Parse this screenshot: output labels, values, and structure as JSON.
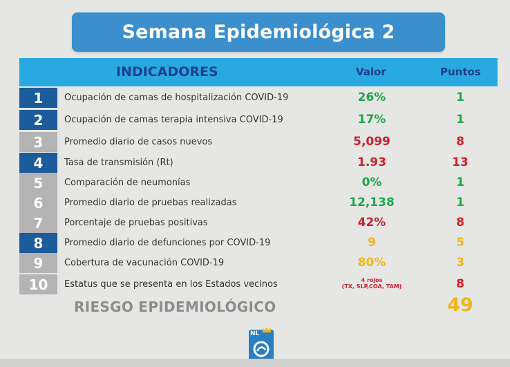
{
  "title": "Semana Epidemiológica 2",
  "header": {
    "indicadores": "INDICADORES",
    "valor": "Valor",
    "puntos": "Puntos"
  },
  "rows": [
    {
      "num": "1",
      "label": "Ocupación de camas de hospitalización COVID-19",
      "value": "26%",
      "points": "1"
    },
    {
      "num": "2",
      "label": "Ocupación de camas terapia intensiva COVID-19",
      "value": "17%",
      "points": "1"
    },
    {
      "num": "3",
      "label": "Promedio diario de casos nuevos",
      "value": "5,099",
      "points": "8"
    },
    {
      "num": "4",
      "label": "Tasa de transmisión (Rt)",
      "value": "1.93",
      "points": "13"
    },
    {
      "num": "5",
      "label": "Comparación de neumonías",
      "value": "0%",
      "points": "1"
    },
    {
      "num": "6",
      "label": "Promedio diario de pruebas realizadas",
      "value": "12,138",
      "points": "1"
    },
    {
      "num": "7",
      "label": "Porcentaje de pruebas positivas",
      "value": "42%",
      "points": "8"
    },
    {
      "num": "8",
      "label": "Promedio diario de defunciones por COVID-19",
      "value": "9",
      "points": "5"
    },
    {
      "num": "9",
      "label": "Cobertura de vacunación COVID-19",
      "value": "80%",
      "points": "3"
    },
    {
      "num": "10",
      "label": "Estatus que se presenta en los Estados vecinos",
      "value_line1": "4 rojos",
      "value_line2": "(TX, SLP,COA, TAM)",
      "points": "8"
    }
  ],
  "footer": {
    "riesgo": "RIESGO EPIDEMIOLÓGICO",
    "total": "49"
  },
  "logo": {
    "text": "NL"
  },
  "colors": {
    "title_bg": "#3a8fcc",
    "header_bg": "#29a9e1",
    "header_text": "#1a3f8c",
    "num_dark": "#1c5b9c",
    "num_grey": "#b4b4b4",
    "green": "#1da84a",
    "red": "#d01f2b",
    "yellow": "#f0b51a"
  }
}
